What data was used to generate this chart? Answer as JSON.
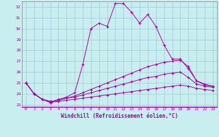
{
  "xlabel": "Windchill (Refroidissement éolien,°C)",
  "background_color": "#c8eef0",
  "grid_color": "#a0c8d8",
  "line_color": "#aa00aa",
  "xlim": [
    -0.5,
    23.5
  ],
  "ylim": [
    22.8,
    32.5
  ],
  "yticks": [
    23,
    24,
    25,
    26,
    27,
    28,
    29,
    30,
    31,
    32
  ],
  "xticks": [
    0,
    1,
    2,
    3,
    4,
    5,
    6,
    7,
    8,
    9,
    10,
    11,
    12,
    13,
    14,
    15,
    16,
    17,
    18,
    19,
    20,
    21,
    22,
    23
  ],
  "series": [
    [
      25.0,
      24.0,
      23.5,
      23.2,
      23.5,
      23.7,
      24.1,
      26.7,
      30.0,
      30.5,
      30.2,
      32.3,
      32.3,
      31.5,
      30.5,
      31.3,
      30.2,
      28.5,
      27.2,
      27.2,
      26.3,
      25.2,
      24.8,
      24.7
    ],
    [
      25.0,
      24.0,
      23.5,
      23.3,
      23.4,
      23.6,
      23.8,
      24.1,
      24.4,
      24.7,
      25.0,
      25.3,
      25.6,
      25.9,
      26.2,
      26.5,
      26.7,
      26.9,
      27.0,
      27.1,
      26.5,
      25.2,
      24.9,
      24.7
    ],
    [
      25.0,
      24.0,
      23.5,
      23.3,
      23.4,
      23.6,
      23.7,
      23.9,
      24.1,
      24.3,
      24.5,
      24.7,
      24.9,
      25.1,
      25.3,
      25.5,
      25.6,
      25.8,
      25.9,
      26.0,
      25.5,
      24.9,
      24.7,
      24.6
    ],
    [
      25.0,
      24.0,
      23.5,
      23.2,
      23.3,
      23.4,
      23.5,
      23.6,
      23.7,
      23.8,
      23.9,
      24.0,
      24.1,
      24.2,
      24.3,
      24.4,
      24.5,
      24.6,
      24.7,
      24.8,
      24.7,
      24.5,
      24.4,
      24.3
    ]
  ]
}
